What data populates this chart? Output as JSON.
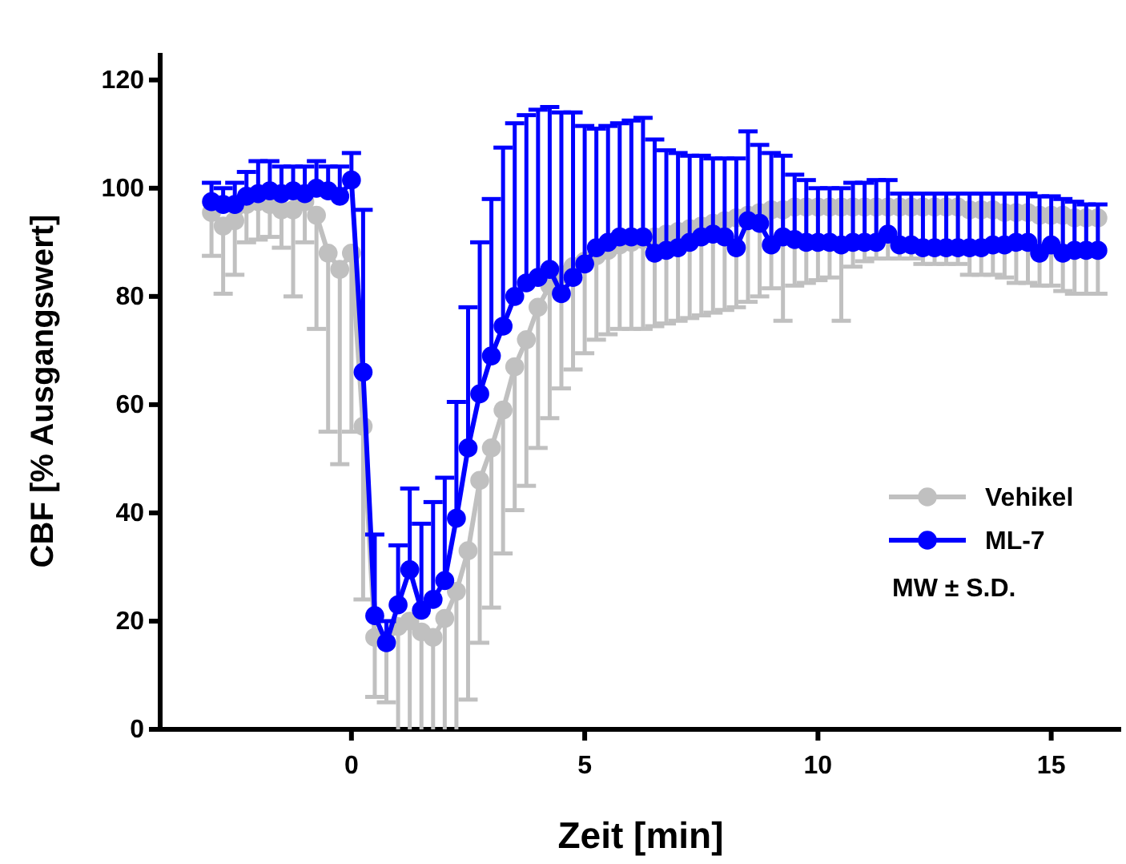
{
  "chart_data": {
    "type": "line",
    "xlabel": "Zeit [min]",
    "ylabel": "CBF [% Ausgangswert]",
    "x": [
      -3,
      -2.75,
      -2.5,
      -2.25,
      -2,
      -1.75,
      -1.5,
      -1.25,
      -1,
      -0.75,
      -0.5,
      -0.25,
      0,
      0.25,
      0.5,
      0.75,
      1,
      1.25,
      1.5,
      1.75,
      2,
      2.25,
      2.5,
      2.75,
      3,
      3.25,
      3.5,
      3.75,
      4,
      4.25,
      4.5,
      4.75,
      5,
      5.25,
      5.5,
      5.75,
      6,
      6.25,
      6.5,
      6.75,
      7,
      7.25,
      7.5,
      7.75,
      8,
      8.25,
      8.5,
      8.75,
      9,
      9.25,
      9.5,
      9.75,
      10,
      10.25,
      10.5,
      10.75,
      11,
      11.25,
      11.5,
      11.75,
      12,
      12.25,
      12.5,
      12.75,
      13,
      13.25,
      13.5,
      13.75,
      14,
      14.25,
      14.5,
      14.75,
      15,
      15.25,
      15.5,
      15.75,
      16
    ],
    "series": [
      {
        "name": "Vehikel",
        "color": "#c0c0c0",
        "values": [
          95.5,
          93,
          94,
          97,
          97.5,
          97,
          96,
          96,
          97.5,
          95,
          88,
          85,
          88,
          56,
          17,
          16,
          19,
          20,
          18,
          17,
          20.5,
          25.5,
          33,
          46,
          52,
          59,
          67,
          72,
          78,
          82,
          84,
          85.5,
          86.5,
          87.5,
          88.5,
          89.5,
          90,
          90.5,
          91,
          91.5,
          92,
          92.5,
          93,
          93.5,
          94,
          94.5,
          95,
          95.5,
          96,
          96,
          96.5,
          96.5,
          96.5,
          96.5,
          96.5,
          96.5,
          96.5,
          96.5,
          96.5,
          96.5,
          96.5,
          96.5,
          96.5,
          96.5,
          96.5,
          96,
          96,
          96,
          95.5,
          95.5,
          95.5,
          95,
          95,
          95,
          94.5,
          94.5,
          94.5
        ],
        "errors": [
          [
            87.5,
            95.5
          ],
          [
            80.5,
            93
          ],
          [
            84,
            94
          ],
          [
            90,
            97
          ],
          [
            90.5,
            97.5
          ],
          [
            91,
            97
          ],
          [
            89,
            96
          ],
          [
            80,
            96
          ],
          [
            90,
            97.5
          ],
          [
            74,
            95
          ],
          [
            55,
            88
          ],
          [
            49,
            85
          ],
          [
            55,
            88
          ],
          [
            24,
            56
          ],
          [
            6,
            17
          ],
          [
            5,
            16
          ],
          [
            0,
            19
          ],
          [
            0,
            20
          ],
          [
            0,
            18
          ],
          [
            0,
            17
          ],
          [
            0,
            20.5
          ],
          [
            0,
            25.5
          ],
          [
            5.5,
            33
          ],
          [
            16,
            46
          ],
          [
            22.5,
            52
          ],
          [
            32.5,
            59
          ],
          [
            40.5,
            67
          ],
          [
            45,
            72
          ],
          [
            52,
            78
          ],
          [
            57.5,
            82
          ],
          [
            63,
            84
          ],
          [
            66.5,
            85.5
          ],
          [
            69.5,
            86.5
          ],
          [
            72,
            87.5
          ],
          [
            73,
            88.5
          ],
          [
            74,
            89.5
          ],
          [
            74,
            90
          ],
          [
            74,
            90.5
          ],
          [
            74.5,
            91
          ],
          [
            75,
            91.5
          ],
          [
            75.5,
            92
          ],
          [
            76,
            92.5
          ],
          [
            76.5,
            93
          ],
          [
            77,
            93.5
          ],
          [
            77.5,
            94
          ],
          [
            78,
            94.5
          ],
          [
            79,
            95
          ],
          [
            80,
            95.5
          ],
          [
            81.5,
            96
          ],
          [
            75.5,
            96
          ],
          [
            82,
            96.5
          ],
          [
            82.5,
            96.5
          ],
          [
            83,
            96.5
          ],
          [
            83.5,
            96.5
          ],
          [
            75.5,
            96.5
          ],
          [
            85.5,
            96.5
          ],
          [
            86.5,
            96.5
          ],
          [
            87,
            96.5
          ],
          [
            87,
            96.5
          ],
          [
            87,
            96.5
          ],
          [
            87,
            96.5
          ],
          [
            86,
            96.5
          ],
          [
            86,
            96.5
          ],
          [
            86,
            96.5
          ],
          [
            86,
            96.5
          ],
          [
            84,
            96
          ],
          [
            84,
            96
          ],
          [
            84,
            96
          ],
          [
            83.5,
            95.5
          ],
          [
            82.5,
            95.5
          ],
          [
            82.5,
            95.5
          ],
          [
            82,
            95
          ],
          [
            82,
            95
          ],
          [
            81,
            95
          ],
          [
            80.5,
            94.5
          ],
          [
            80.5,
            94.5
          ],
          [
            80.5,
            94.5
          ]
        ]
      },
      {
        "name": "ML-7",
        "color": "#0000ff",
        "values": [
          97.5,
          97,
          97,
          98.5,
          99,
          99.5,
          99,
          99.5,
          99,
          100,
          99.5,
          98.5,
          101.5,
          66,
          21,
          16,
          23,
          29.5,
          22,
          24,
          27.5,
          39,
          52,
          62,
          69,
          74.5,
          80,
          82.5,
          83.5,
          85,
          80.5,
          83.5,
          86,
          89,
          90,
          91,
          91,
          91,
          88,
          88.5,
          89,
          90,
          91,
          91.5,
          91,
          89,
          94,
          93.5,
          89.5,
          91,
          90.5,
          90,
          90,
          90,
          89.5,
          90,
          90,
          90,
          91.5,
          89.5,
          89.5,
          89,
          89,
          89,
          89,
          89,
          89,
          89.5,
          89.5,
          90,
          90,
          88,
          89.5,
          88,
          88.5,
          88.5,
          88.5
        ],
        "errors": [
          [
            97.5,
            101
          ],
          [
            97,
            100
          ],
          [
            97,
            101
          ],
          [
            98.5,
            103
          ],
          [
            99,
            105
          ],
          [
            99.5,
            105
          ],
          [
            99,
            104
          ],
          [
            99.5,
            104
          ],
          [
            99,
            104
          ],
          [
            100,
            105
          ],
          [
            99.5,
            104
          ],
          [
            98.5,
            104
          ],
          [
            101.5,
            106.5
          ],
          [
            66,
            96
          ],
          [
            21,
            36
          ],
          [
            16,
            20
          ],
          [
            23,
            34
          ],
          [
            29.5,
            44.5
          ],
          [
            22,
            38
          ],
          [
            24,
            42
          ],
          [
            27.5,
            46.5
          ],
          [
            39,
            60.5
          ],
          [
            52,
            78
          ],
          [
            62,
            90
          ],
          [
            69,
            98
          ],
          [
            74.5,
            107.5
          ],
          [
            80,
            112
          ],
          [
            82.5,
            113.5
          ],
          [
            83.5,
            114.5
          ],
          [
            85,
            115
          ],
          [
            80.5,
            114
          ],
          [
            83.5,
            114
          ],
          [
            86,
            111.5
          ],
          [
            89,
            111
          ],
          [
            90,
            111.5
          ],
          [
            91,
            112
          ],
          [
            91,
            112.5
          ],
          [
            91,
            113
          ],
          [
            88,
            109
          ],
          [
            88.5,
            107
          ],
          [
            89,
            106.5
          ],
          [
            90,
            106
          ],
          [
            91,
            106
          ],
          [
            91.5,
            105.5
          ],
          [
            91,
            105.5
          ],
          [
            89,
            105.5
          ],
          [
            94,
            110.5
          ],
          [
            93.5,
            108
          ],
          [
            89.5,
            106.5
          ],
          [
            91,
            106
          ],
          [
            90.5,
            102.5
          ],
          [
            90,
            101.5
          ],
          [
            90,
            100
          ],
          [
            90,
            100
          ],
          [
            89.5,
            100
          ],
          [
            90,
            101
          ],
          [
            90,
            101
          ],
          [
            90,
            101.5
          ],
          [
            91.5,
            101.5
          ],
          [
            89.5,
            99
          ],
          [
            89.5,
            99
          ],
          [
            89,
            99
          ],
          [
            89,
            99
          ],
          [
            89,
            99
          ],
          [
            89,
            99
          ],
          [
            89,
            99
          ],
          [
            89,
            99
          ],
          [
            89.5,
            99
          ],
          [
            89.5,
            99
          ],
          [
            90,
            99
          ],
          [
            90,
            99
          ],
          [
            88,
            98.5
          ],
          [
            89.5,
            98.5
          ],
          [
            88,
            98
          ],
          [
            88.5,
            97.5
          ],
          [
            88.5,
            97
          ],
          [
            88.5,
            97
          ]
        ]
      }
    ],
    "xlim": [
      -4.1,
      16.5
    ],
    "xticks": [
      0,
      5,
      10,
      15
    ],
    "ylim": [
      0,
      125
    ],
    "yticks": [
      0,
      20,
      40,
      60,
      80,
      100,
      120
    ],
    "grid": false,
    "legend": "bottom right",
    "marker": "circle",
    "line_style": "solid",
    "annotations": [
      "MW ± S.D."
    ]
  }
}
